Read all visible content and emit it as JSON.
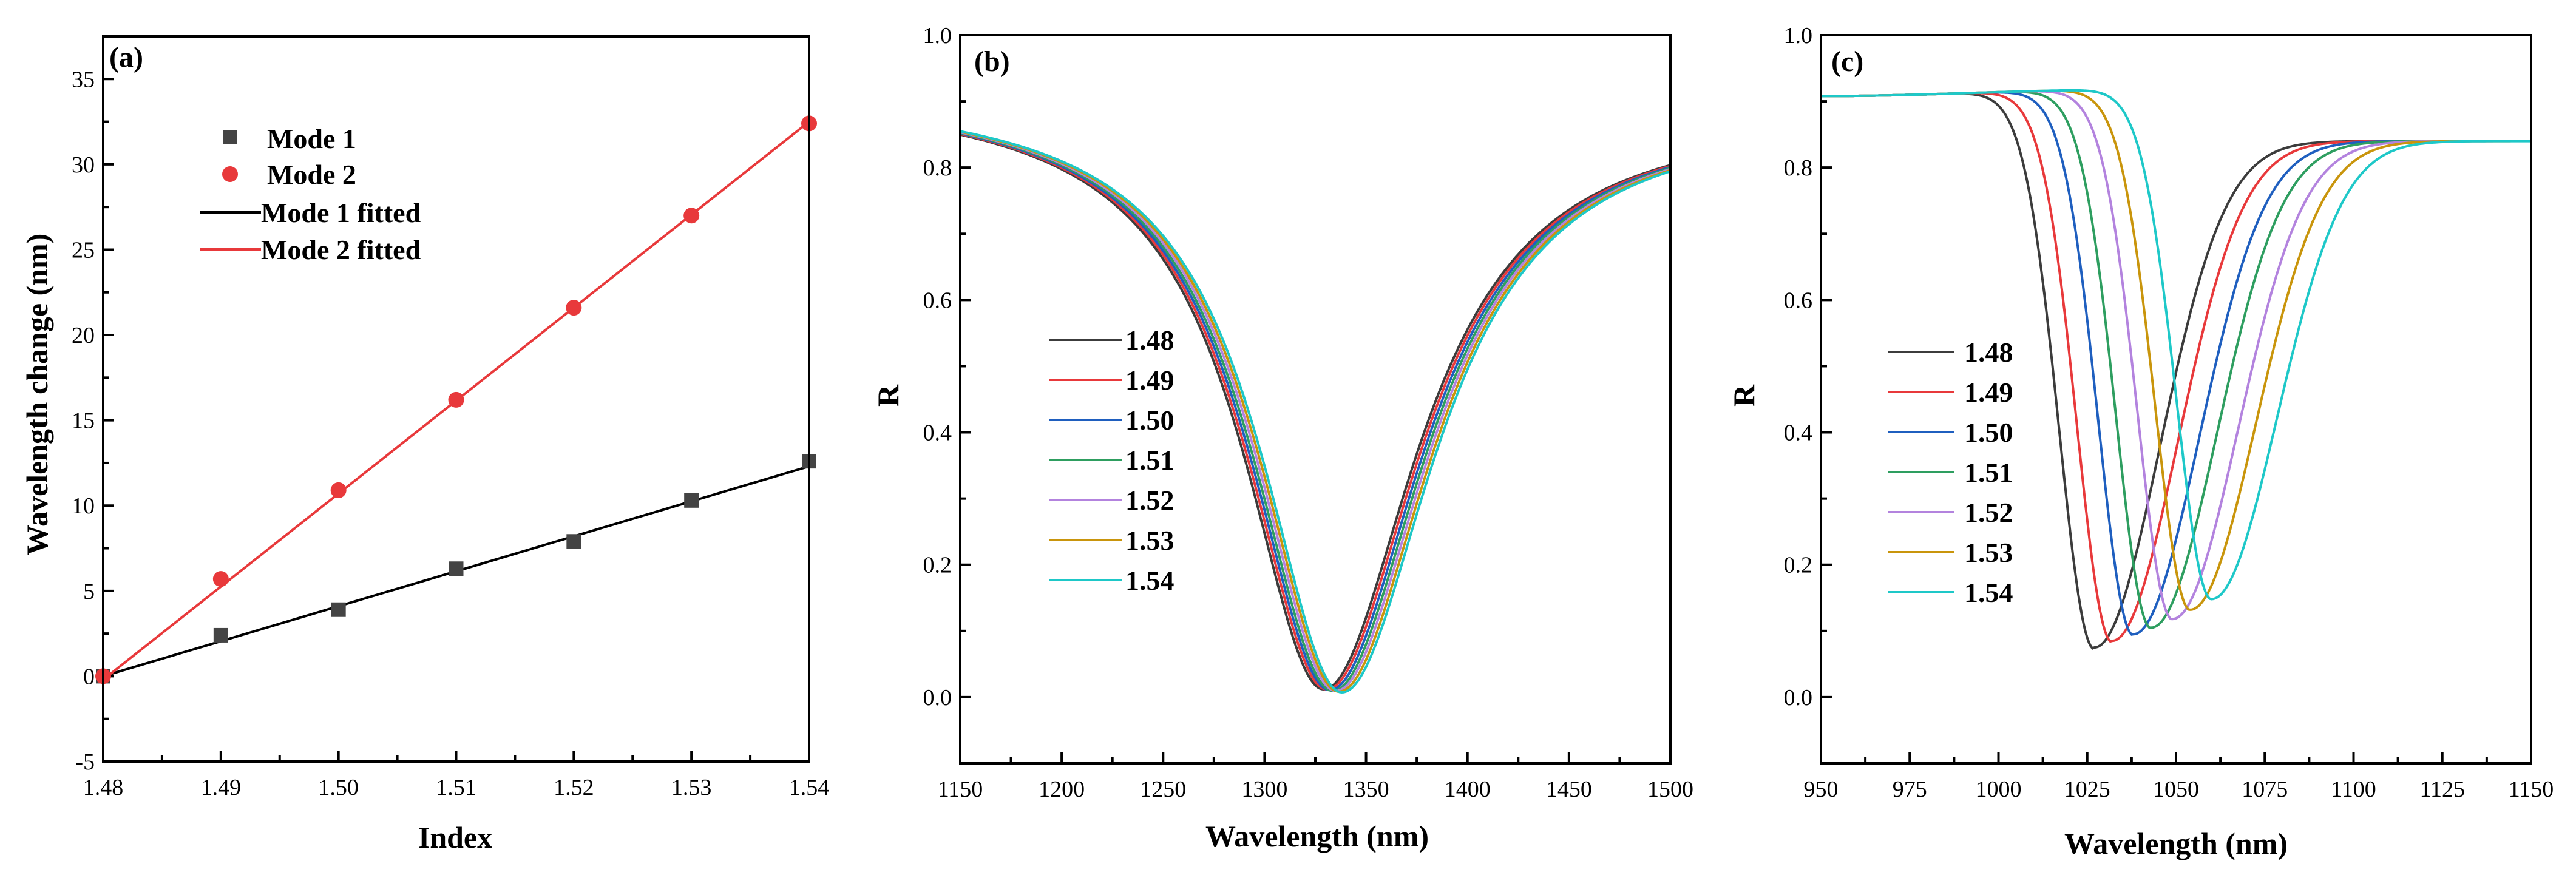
{
  "colors": {
    "black": "#3c3c3c",
    "red": "#e8393b",
    "blue": "#1f5fbf",
    "green": "#2e9e60",
    "purple": "#b383de",
    "gold": "#c9950c",
    "cyan": "#1ec8c8",
    "mode1": "#444444",
    "mode2": "#e8393b"
  },
  "chart_data": [
    {
      "type": "scatter",
      "panel": "(a)",
      "xlabel": "Index",
      "ylabel": "Wavelength change (nm)",
      "xlim": [
        1.48,
        1.54
      ],
      "ylim": [
        -5,
        37.5
      ],
      "xticks": [
        "1.48",
        "1.49",
        "1.50",
        "1.51",
        "1.52",
        "1.53",
        "1.54"
      ],
      "yticks": [
        "-5",
        "0",
        "5",
        "10",
        "15",
        "20",
        "25",
        "30",
        "35"
      ],
      "legend_position": "upper-left",
      "series": [
        {
          "name": "Mode 1",
          "kind": "points",
          "marker": "square",
          "color": "#444444",
          "x": [
            1.48,
            1.49,
            1.5,
            1.51,
            1.52,
            1.53,
            1.54
          ],
          "y": [
            0,
            2.4,
            3.9,
            6.3,
            7.9,
            10.3,
            12.6
          ]
        },
        {
          "name": "Mode 2",
          "kind": "points",
          "marker": "circle",
          "color": "#e8393b",
          "x": [
            1.48,
            1.49,
            1.5,
            1.51,
            1.52,
            1.53,
            1.54
          ],
          "y": [
            0,
            5.7,
            10.9,
            16.2,
            21.6,
            27.0,
            32.4
          ]
        },
        {
          "name": "Mode 1 fitted",
          "kind": "line",
          "color": "#000000",
          "x": [
            1.48,
            1.54
          ],
          "y": [
            0,
            12.3
          ]
        },
        {
          "name": "Mode 2 fitted",
          "kind": "line",
          "color": "#e8393b",
          "x": [
            1.48,
            1.54
          ],
          "y": [
            -0.2,
            32.5
          ]
        }
      ]
    },
    {
      "type": "line",
      "panel": "(b)",
      "xlabel": "Wavelength (nm)",
      "ylabel": "R",
      "xlim": [
        1150,
        1500
      ],
      "ylim": [
        -0.1,
        1.0
      ],
      "xticks": [
        "1150",
        "1200",
        "1250",
        "1300",
        "1350",
        "1400",
        "1450",
        "1500"
      ],
      "yticks": [
        "0.0",
        "0.2",
        "0.4",
        "0.6",
        "0.8",
        "1.0"
      ],
      "legend_position": "middle-left",
      "shape": {
        "baseline": 0.9,
        "depth": 0.89,
        "left_width": 52,
        "right_width": 60,
        "tilt": -6e-05
      },
      "series": [
        {
          "name": "1.48",
          "color": "#3c3c3c",
          "center": 1329,
          "min": 0.012
        },
        {
          "name": "1.49",
          "color": "#e8393b",
          "center": 1330.5,
          "min": 0.012
        },
        {
          "name": "1.50",
          "color": "#1f5fbf",
          "center": 1332,
          "min": 0.011
        },
        {
          "name": "1.51",
          "color": "#2e9e60",
          "center": 1333.5,
          "min": 0.01
        },
        {
          "name": "1.52",
          "color": "#b383de",
          "center": 1335,
          "min": 0.01
        },
        {
          "name": "1.53",
          "color": "#c9950c",
          "center": 1336.5,
          "min": 0.009
        },
        {
          "name": "1.54",
          "color": "#1ec8c8",
          "center": 1338,
          "min": 0.008
        }
      ]
    },
    {
      "type": "line",
      "panel": "(c)",
      "xlabel": "Wavelength (nm)",
      "ylabel": "R",
      "xlim": [
        950,
        1150
      ],
      "ylim": [
        -0.1,
        1.0
      ],
      "xticks": [
        "950",
        "975",
        "1000",
        "1025",
        "1050",
        "1075",
        "1100",
        "1125",
        "1150"
      ],
      "yticks": [
        "0.0",
        "0.2",
        "0.4",
        "0.6",
        "0.8",
        "1.0"
      ],
      "legend_position": "middle-left",
      "shape": {
        "left_level": 0.92,
        "right_level": 0.84,
        "left_width": 14,
        "right_width": 26
      },
      "series": [
        {
          "name": "1.48",
          "color": "#3c3c3c",
          "center": 1027,
          "min": 0.075
        },
        {
          "name": "1.49",
          "color": "#e8393b",
          "center": 1032,
          "min": 0.085
        },
        {
          "name": "1.50",
          "color": "#1f5fbf",
          "center": 1038,
          "min": 0.095
        },
        {
          "name": "1.51",
          "color": "#2e9e60",
          "center": 1043,
          "min": 0.105
        },
        {
          "name": "1.52",
          "color": "#b383de",
          "center": 1049,
          "min": 0.118
        },
        {
          "name": "1.53",
          "color": "#c9950c",
          "center": 1054,
          "min": 0.132
        },
        {
          "name": "1.54",
          "color": "#1ec8c8",
          "center": 1060,
          "min": 0.148
        }
      ]
    }
  ]
}
